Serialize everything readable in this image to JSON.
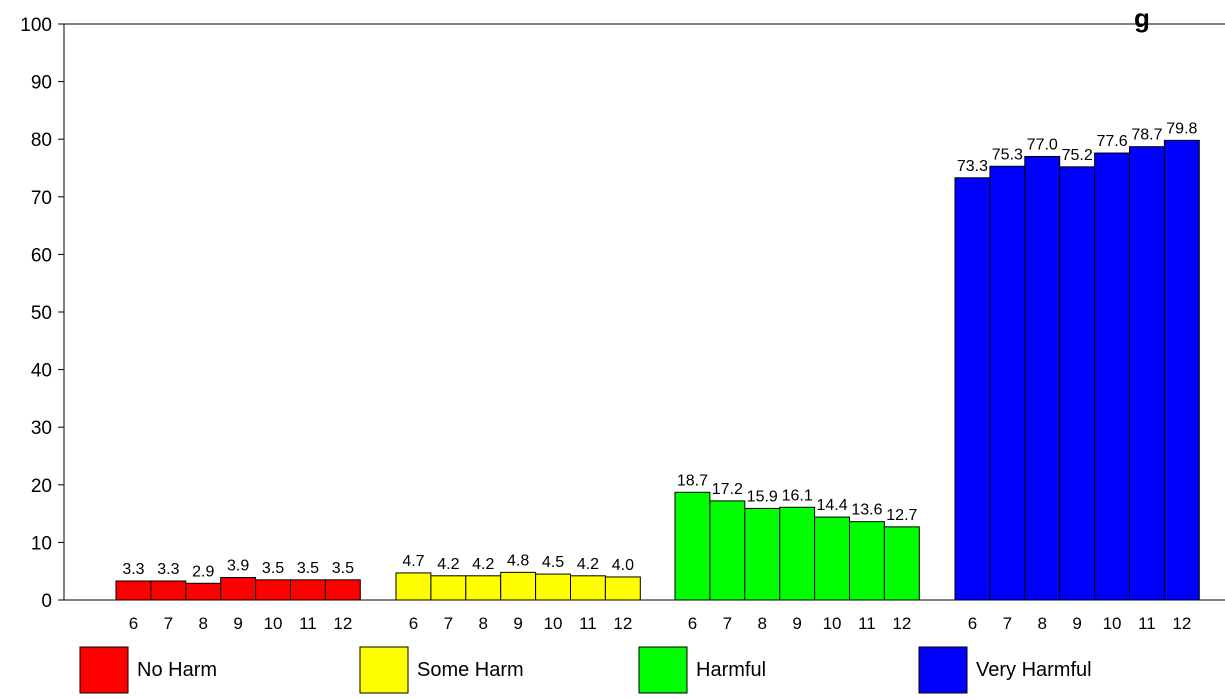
{
  "chart_data": {
    "type": "bar",
    "title": "g",
    "xlabel": "",
    "ylabel": "",
    "ylim": [
      0,
      100
    ],
    "yticks": [
      0,
      10,
      20,
      30,
      40,
      50,
      60,
      70,
      80,
      90,
      100
    ],
    "grid": false,
    "legend_position": "bottom",
    "groups": [
      {
        "name": "No Harm",
        "color": "#ff0000",
        "categories": [
          "6",
          "7",
          "8",
          "9",
          "10",
          "11",
          "12"
        ],
        "values": [
          3.3,
          3.3,
          2.9,
          3.9,
          3.5,
          3.5,
          3.5
        ],
        "labels": [
          "3.3",
          "3.3",
          "2.9",
          "3.9",
          "3.5",
          "3.5",
          "3.5"
        ]
      },
      {
        "name": "Some Harm",
        "color": "#ffff00",
        "categories": [
          "6",
          "7",
          "8",
          "9",
          "10",
          "11",
          "12"
        ],
        "values": [
          4.7,
          4.2,
          4.2,
          4.8,
          4.5,
          4.2,
          4.0
        ],
        "labels": [
          "4.7",
          "4.2",
          "4.2",
          "4.8",
          "4.5",
          "4.2",
          "4.0"
        ]
      },
      {
        "name": "Harmful",
        "color": "#00ff00",
        "categories": [
          "6",
          "7",
          "8",
          "9",
          "10",
          "11",
          "12"
        ],
        "values": [
          18.7,
          17.2,
          15.9,
          16.1,
          14.4,
          13.6,
          12.7
        ],
        "labels": [
          "18.7",
          "17.2",
          "15.9",
          "16.1",
          "14.4",
          "13.6",
          "12.7"
        ]
      },
      {
        "name": "Very Harmful",
        "color": "#0000ff",
        "categories": [
          "6",
          "7",
          "8",
          "9",
          "10",
          "11",
          "12"
        ],
        "values": [
          73.3,
          75.3,
          77.0,
          75.2,
          77.6,
          78.7,
          79.8
        ],
        "labels": [
          "73.3",
          "75.3",
          "77.0",
          "75.2",
          "77.6",
          "78.7",
          "79.8"
        ]
      }
    ]
  }
}
